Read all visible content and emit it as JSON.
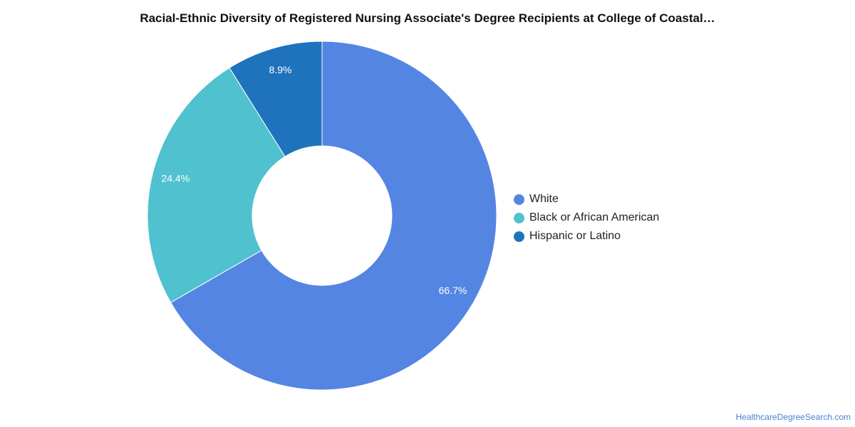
{
  "chart_data": {
    "type": "pie",
    "title": "Racial-Ethnic Diversity of Registered Nursing Associate's Degree Recipients at College of Coastal…",
    "categories": [
      "White",
      "Black or African American",
      "Hispanic or Latino"
    ],
    "values": [
      66.7,
      24.4,
      8.9
    ],
    "data_labels": [
      "66.7%",
      "24.4%",
      "8.9%"
    ],
    "colors": [
      "#5585e3",
      "#50c1ce",
      "#1f73bd"
    ],
    "donut": true,
    "legend_position": "right"
  },
  "legend": {
    "items": [
      {
        "label": "White",
        "color": "#5585e3"
      },
      {
        "label": "Black or African American",
        "color": "#50c1ce"
      },
      {
        "label": "Hispanic or Latino",
        "color": "#1f73bd"
      }
    ]
  },
  "footer": {
    "source": "HealthcareDegreeSearch.com"
  }
}
